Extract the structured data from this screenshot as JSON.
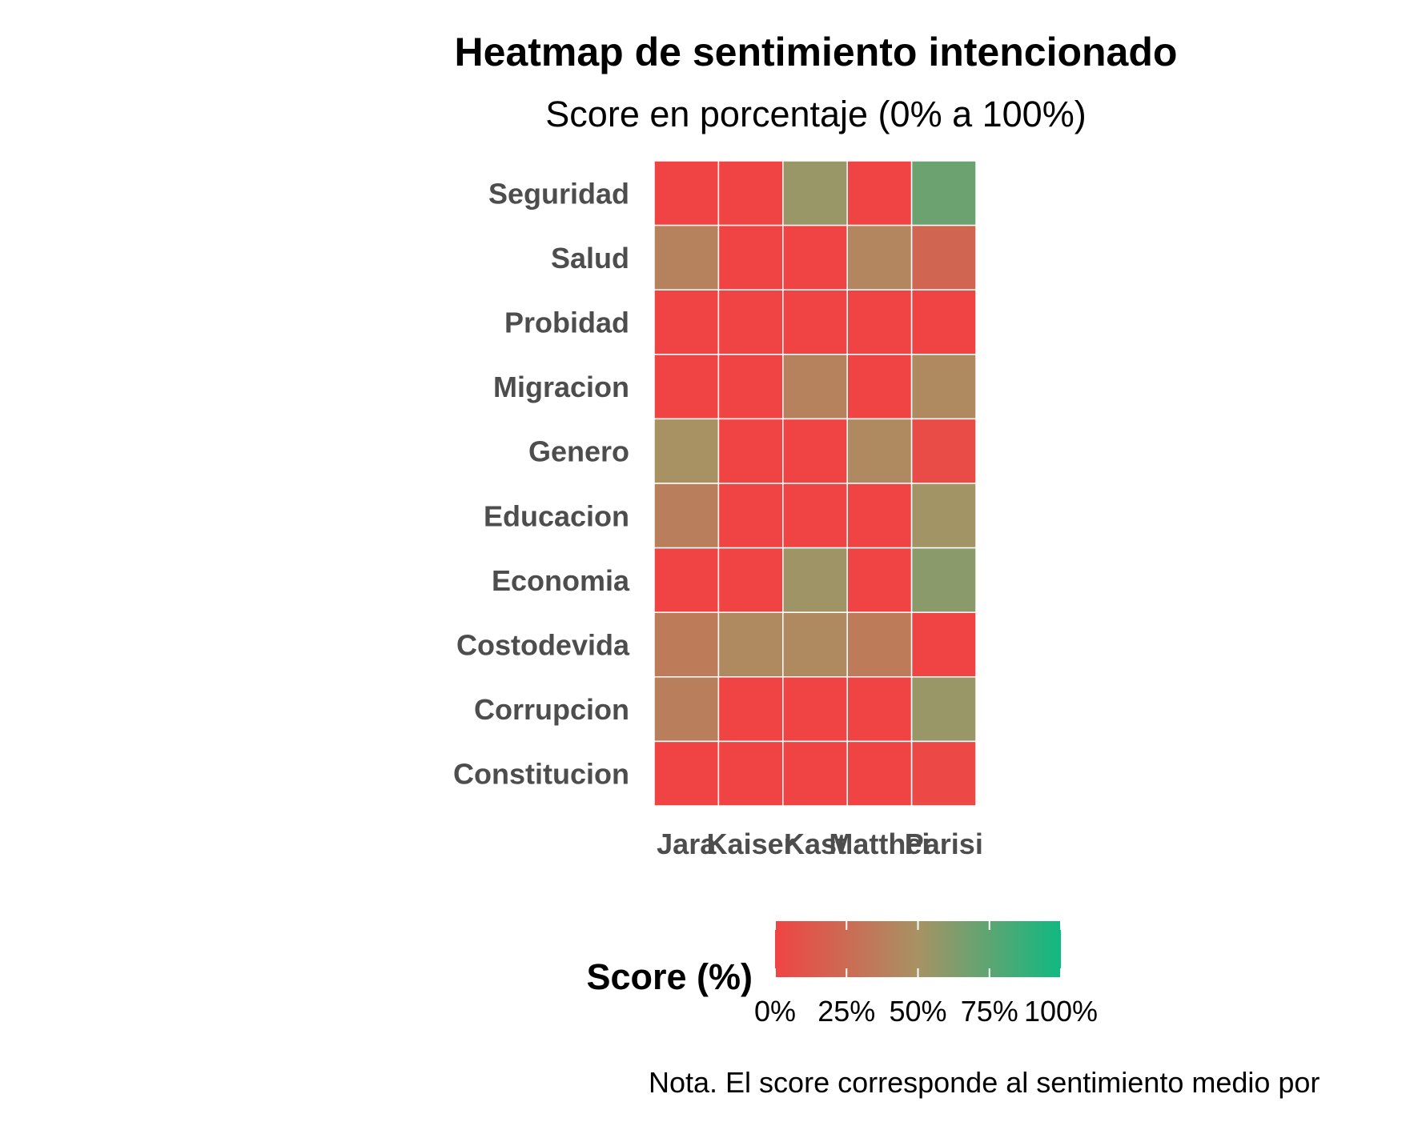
{
  "chart_data": {
    "type": "heatmap",
    "title": "Heatmap de sentimiento intencionado",
    "subtitle": "Score en porcentaje (0% a 100%)",
    "xlabel": "",
    "ylabel": "",
    "x_categories": [
      "Jara",
      "Kaiser",
      "Kast",
      "Matthei",
      "Parisi"
    ],
    "y_categories": [
      "Seguridad",
      "Salud",
      "Probidad",
      "Migracion",
      "Genero",
      "Educacion",
      "Economia",
      "Costodevida",
      "Corrupcion",
      "Constitucion"
    ],
    "values": [
      [
        0,
        0,
        55,
        0,
        70
      ],
      [
        40,
        0,
        0,
        42,
        22
      ],
      [
        0,
        0,
        0,
        0,
        0
      ],
      [
        0,
        0,
        40,
        0,
        45
      ],
      [
        50,
        0,
        0,
        45,
        5
      ],
      [
        38,
        0,
        0,
        0,
        52
      ],
      [
        0,
        0,
        53,
        0,
        60
      ],
      [
        35,
        45,
        45,
        35,
        0
      ],
      [
        38,
        0,
        0,
        0,
        55
      ],
      [
        0,
        0,
        0,
        0,
        3
      ]
    ],
    "value_range": [
      0,
      100
    ],
    "legend": {
      "title": "Score (%)",
      "position": "bottom",
      "ticks": [
        0,
        25,
        50,
        75,
        100
      ],
      "tick_labels": [
        "0%",
        "25%",
        "50%",
        "75%",
        "100%"
      ]
    },
    "colors": {
      "low": "#f04444",
      "mid": "#a89264",
      "high": "#10b981"
    },
    "grid": false,
    "note": "Nota. El score corresponde al sentimiento medio por"
  }
}
